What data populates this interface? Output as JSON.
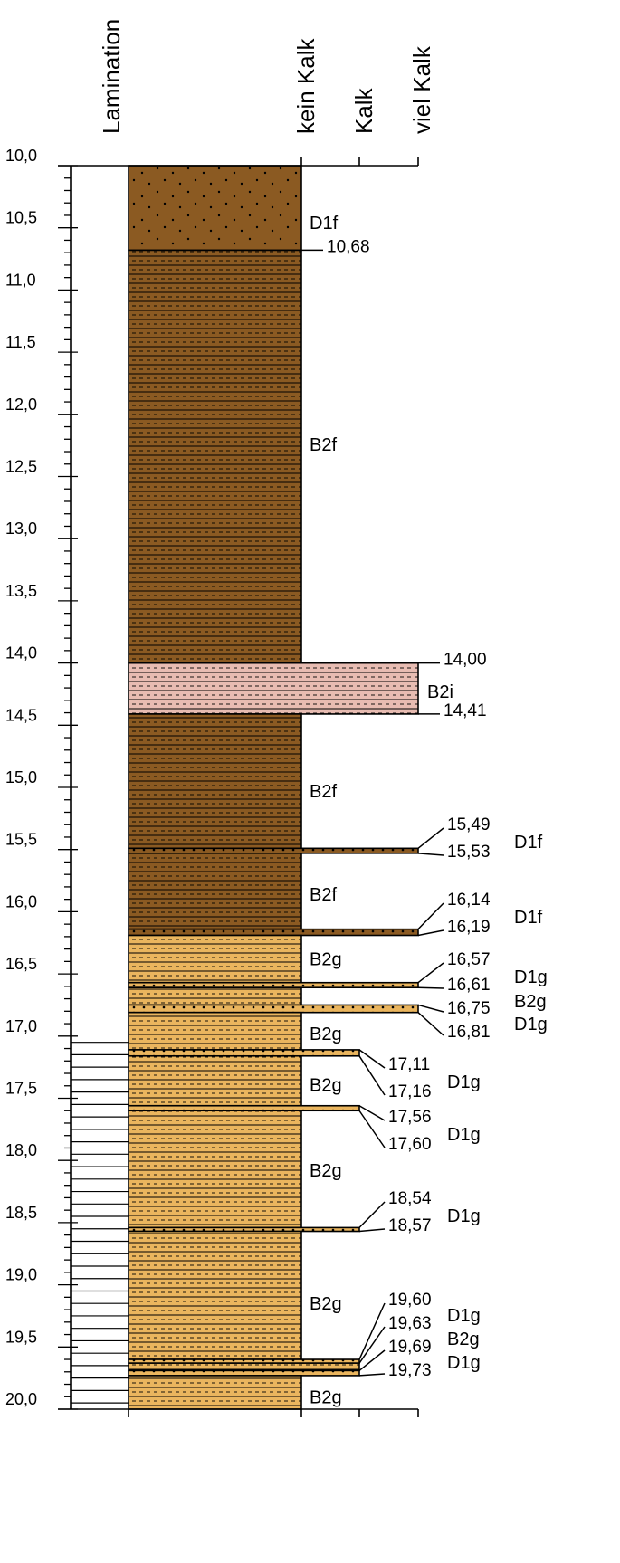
{
  "headers": {
    "lamination": "Lamination",
    "kein_kalk": "kein Kalk",
    "kalk": "Kalk",
    "viel_kalk": "viel Kalk"
  },
  "depth_axis": {
    "min": 10.0,
    "max": 20.0,
    "major_step": 0.5,
    "minor_step": 0.1,
    "tick_labels": [
      "10,0",
      "10,5",
      "11,0",
      "11,5",
      "12,0",
      "12,5",
      "13,0",
      "13,5",
      "14,0",
      "14,5",
      "15,0",
      "15,5",
      "16,0",
      "16,5",
      "17,0",
      "17,5",
      "18,0",
      "18,5",
      "19,0",
      "19,5",
      "20,0"
    ]
  },
  "colors": {
    "brown": "#8b5a22",
    "pink": "#e8bcb2",
    "yellow": "#eab55e",
    "line": "#000000"
  },
  "layers": [
    {
      "top": 10.0,
      "bottom": 10.68,
      "fill": "brown",
      "pattern": "dots",
      "lime": "kein",
      "label": "D1f"
    },
    {
      "top": 10.68,
      "bottom": 14.0,
      "fill": "brown",
      "pattern": "silt",
      "lime": "kein",
      "label": "B2f"
    },
    {
      "top": 14.0,
      "bottom": 14.41,
      "fill": "pink",
      "pattern": "silt",
      "lime": "viel",
      "label": "B2i"
    },
    {
      "top": 14.41,
      "bottom": 15.49,
      "fill": "brown",
      "pattern": "silt",
      "lime": "kein",
      "label": "B2f"
    },
    {
      "top": 15.49,
      "bottom": 15.53,
      "fill": "brown",
      "pattern": "dots",
      "lime": "viel",
      "label": "D1f"
    },
    {
      "top": 15.53,
      "bottom": 16.14,
      "fill": "brown",
      "pattern": "silt",
      "lime": "kein",
      "label": "B2f"
    },
    {
      "top": 16.14,
      "bottom": 16.19,
      "fill": "brown",
      "pattern": "dots",
      "lime": "viel",
      "label": "D1f"
    },
    {
      "top": 16.19,
      "bottom": 16.57,
      "fill": "yellow",
      "pattern": "silt",
      "lime": "kein",
      "label": "B2g"
    },
    {
      "top": 16.57,
      "bottom": 16.61,
      "fill": "yellow",
      "pattern": "dots",
      "lime": "viel",
      "label": "D1g"
    },
    {
      "top": 16.61,
      "bottom": 16.75,
      "fill": "yellow",
      "pattern": "silt",
      "lime": "kein",
      "label": "B2g"
    },
    {
      "top": 16.75,
      "bottom": 16.81,
      "fill": "yellow",
      "pattern": "dots",
      "lime": "viel",
      "label": "D1g"
    },
    {
      "top": 16.81,
      "bottom": 17.11,
      "fill": "yellow",
      "pattern": "silt",
      "lime": "kein",
      "label": "B2g"
    },
    {
      "top": 17.11,
      "bottom": 17.16,
      "fill": "yellow",
      "pattern": "dots",
      "lime": "kalk",
      "label": "D1g"
    },
    {
      "top": 17.16,
      "bottom": 17.56,
      "fill": "yellow",
      "pattern": "silt",
      "lime": "kein",
      "label": "B2g"
    },
    {
      "top": 17.56,
      "bottom": 17.6,
      "fill": "yellow",
      "pattern": "dots",
      "lime": "kalk",
      "label": "D1g"
    },
    {
      "top": 17.6,
      "bottom": 18.54,
      "fill": "yellow",
      "pattern": "silt",
      "lime": "kein",
      "label": "B2g"
    },
    {
      "top": 18.54,
      "bottom": 18.57,
      "fill": "yellow",
      "pattern": "dots",
      "lime": "kalk",
      "label": "D1g"
    },
    {
      "top": 18.57,
      "bottom": 19.6,
      "fill": "yellow",
      "pattern": "silt",
      "lime": "kein",
      "label": "B2g"
    },
    {
      "top": 19.6,
      "bottom": 19.63,
      "fill": "yellow",
      "pattern": "dots",
      "lime": "kalk",
      "label": "D1g"
    },
    {
      "top": 19.63,
      "bottom": 19.69,
      "fill": "yellow",
      "pattern": "silt",
      "lime": "kalk",
      "label": "B2g"
    },
    {
      "top": 19.69,
      "bottom": 19.73,
      "fill": "yellow",
      "pattern": "dots",
      "lime": "kalk",
      "label": "D1g"
    },
    {
      "top": 19.73,
      "bottom": 20.0,
      "fill": "yellow",
      "pattern": "silt",
      "lime": "kein",
      "label": "B2g"
    }
  ],
  "main_labels": [
    {
      "text": "D1f",
      "depth": 10.46
    },
    {
      "text": "B2f",
      "depth": 12.24
    },
    {
      "text": "B2f",
      "depth": 15.03
    },
    {
      "text": "B2f",
      "depth": 15.86
    },
    {
      "text": "B2g",
      "depth": 16.38
    },
    {
      "text": "B2g",
      "depth": 16.98
    },
    {
      "text": "B2g",
      "depth": 17.39
    },
    {
      "text": "B2g",
      "depth": 18.08
    },
    {
      "text": "B2g",
      "depth": 19.15
    },
    {
      "text": "B2g",
      "depth": 19.9
    },
    {
      "text": "B2i",
      "depth": 14.23
    }
  ],
  "boundary_labels": [
    {
      "text": "10,68",
      "depth": 10.68
    },
    {
      "text": "14,00",
      "depth": 14.0
    },
    {
      "text": "14,41",
      "depth": 14.41
    },
    {
      "text": "15,49",
      "depth": 15.49
    },
    {
      "text": "15,53",
      "depth": 15.53
    },
    {
      "text": "16,14",
      "depth": 16.14
    },
    {
      "text": "16,19",
      "depth": 16.19
    },
    {
      "text": "16,57",
      "depth": 16.57
    },
    {
      "text": "16,61",
      "depth": 16.61
    },
    {
      "text": "16,75",
      "depth": 16.75
    },
    {
      "text": "16,81",
      "depth": 16.81
    },
    {
      "text": "17,11",
      "depth": 17.11
    },
    {
      "text": "17,16",
      "depth": 17.16
    },
    {
      "text": "17,56",
      "depth": 17.56
    },
    {
      "text": "17,60",
      "depth": 17.6
    },
    {
      "text": "18,54",
      "depth": 18.54
    },
    {
      "text": "18,57",
      "depth": 18.57
    },
    {
      "text": "19,60",
      "depth": 19.6
    },
    {
      "text": "19,63",
      "depth": 19.63
    },
    {
      "text": "19,69",
      "depth": 19.69
    },
    {
      "text": "19,73",
      "depth": 19.73
    }
  ],
  "thin_layer_labels": [
    {
      "text": "D1f",
      "depth": 15.51
    },
    {
      "text": "D1f",
      "depth": 16.165
    },
    {
      "text": "D1g",
      "depth": 16.59
    },
    {
      "text": "B2g",
      "depth": 16.68
    },
    {
      "text": "D1g",
      "depth": 16.78
    },
    {
      "text": "D1g",
      "depth": 17.135
    },
    {
      "text": "D1g",
      "depth": 17.58
    },
    {
      "text": "D1g",
      "depth": 18.555
    },
    {
      "text": "D1g",
      "depth": 19.615
    },
    {
      "text": "B2g",
      "depth": 19.66
    },
    {
      "text": "D1g",
      "depth": 19.71
    }
  ],
  "lamination": {
    "from": 17.05,
    "to": 20.0,
    "step": 0.1
  }
}
